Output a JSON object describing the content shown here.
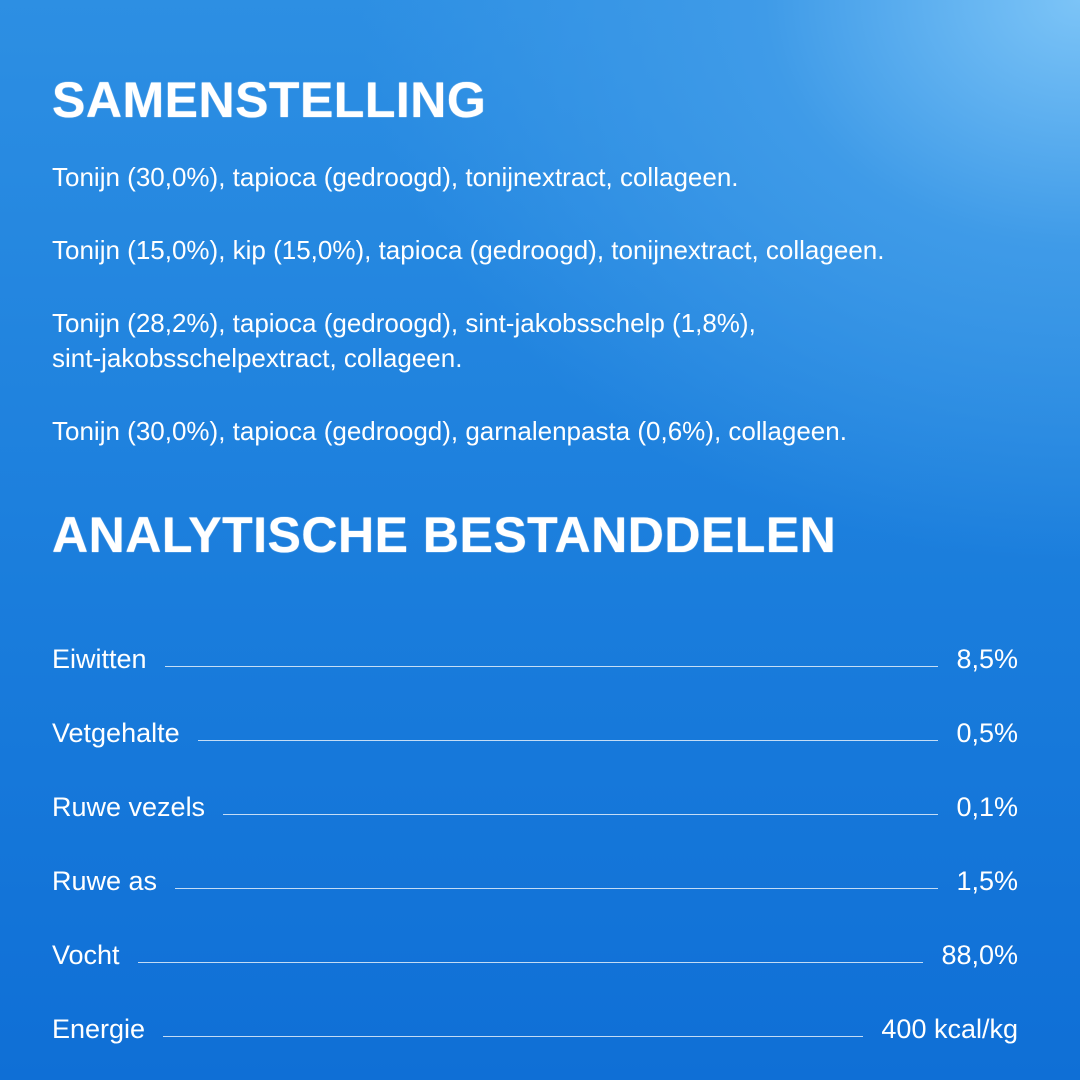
{
  "composition": {
    "title": "SAMENSTELLING",
    "paragraphs": [
      [
        "Tonijn (30,0%), tapioca (gedroogd), tonijnextract, collageen."
      ],
      [
        "Tonijn (15,0%), kip (15,0%), tapioca (gedroogd), tonijnextract, collageen."
      ],
      [
        "Tonijn (28,2%), tapioca (gedroogd), sint-jakobsschelp (1,8%),",
        "sint-jakobsschelpextract, collageen."
      ],
      [
        "Tonijn (30,0%), tapioca (gedroogd), garnalenpasta (0,6%), collageen."
      ]
    ]
  },
  "analysis": {
    "title": "ANALYTISCHE BESTANDDELEN",
    "rows": [
      [
        "Eiwitten",
        "8,5%"
      ],
      [
        "Vetgehalte",
        "0,5%"
      ],
      [
        "Ruwe vezels",
        "0,1%"
      ],
      [
        "Ruwe as",
        "1,5%"
      ],
      [
        "Vocht",
        "88,0%"
      ],
      [
        "Energie",
        "400 kcal/kg"
      ]
    ]
  }
}
